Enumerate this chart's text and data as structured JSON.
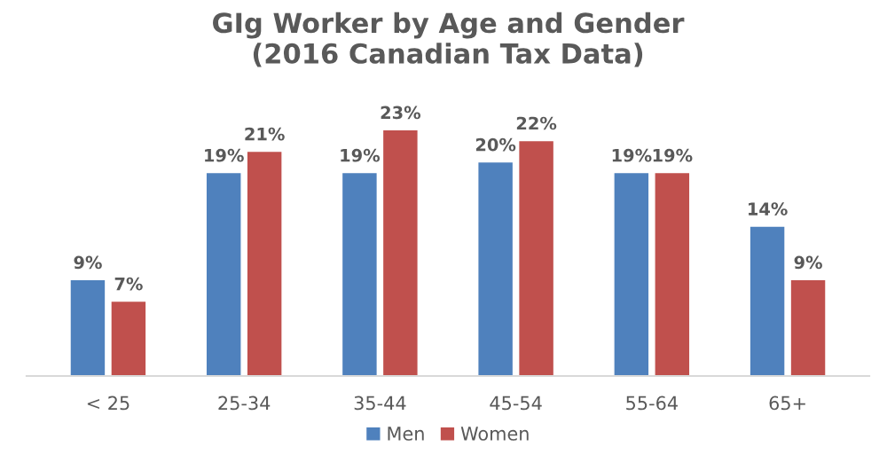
{
  "chart_data": {
    "type": "bar",
    "title": "GIg Worker by Age and Gender\n(2016 Canadian Tax Data)",
    "categories": [
      "< 25",
      "25-34",
      "35-44",
      "45-54",
      "55-64",
      "65+"
    ],
    "series": [
      {
        "name": "Men",
        "color": "#4f81bd",
        "values": [
          9,
          19,
          19,
          20,
          19,
          14
        ],
        "value_labels": [
          "9%",
          "19%",
          "19%",
          "20%",
          "19%",
          "14%"
        ]
      },
      {
        "name": "Women",
        "color": "#c0504d",
        "values": [
          7,
          21,
          23,
          22,
          19,
          9
        ],
        "value_labels": [
          "7%",
          "21%",
          "23%",
          "22%",
          "19%",
          "9%"
        ]
      }
    ],
    "legend": "bottom"
  }
}
